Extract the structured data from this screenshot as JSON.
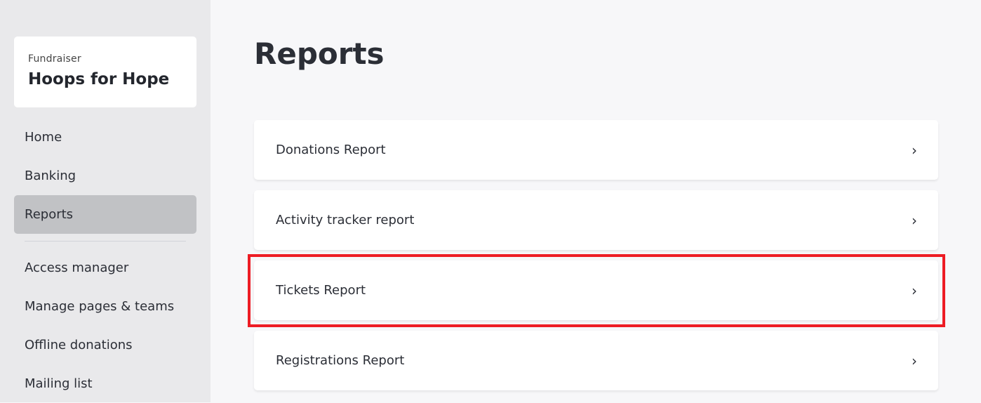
{
  "sidebar": {
    "org_label": "Fundraiser",
    "org_name": "Hoops for Hope",
    "items": [
      {
        "label": "Home"
      },
      {
        "label": "Banking"
      },
      {
        "label": "Reports",
        "active": true
      },
      {
        "label": "Access manager"
      },
      {
        "label": "Manage pages & teams"
      },
      {
        "label": "Offline donations"
      },
      {
        "label": "Mailing list"
      }
    ]
  },
  "main": {
    "title": "Reports",
    "reports": [
      {
        "label": "Donations Report",
        "icon": "chevron-right-icon"
      },
      {
        "label": "Activity tracker report",
        "icon": "chevron-right-icon"
      },
      {
        "label": "Tickets Report",
        "icon": "chevron-right-icon"
      },
      {
        "label": "Registrations Report",
        "icon": "chevron-right-icon"
      }
    ],
    "highlight": {
      "target": "Tickets Report",
      "color": "#ed1c24"
    }
  }
}
